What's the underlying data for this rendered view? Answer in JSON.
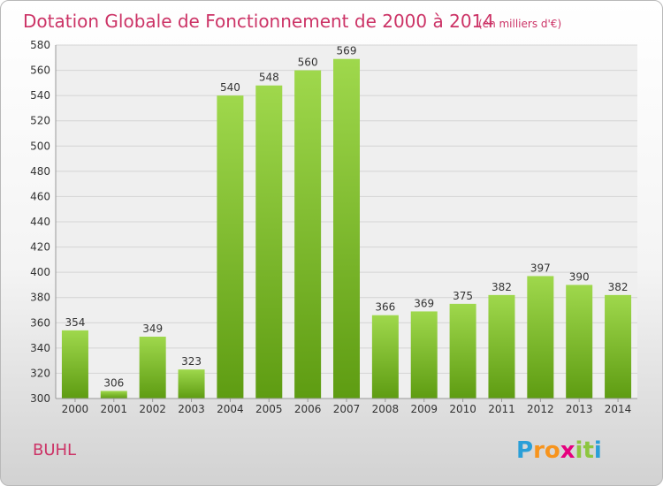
{
  "chart_data": {
    "type": "bar",
    "title": "Dotation Globale de Fonctionnement de 2000 à 2014",
    "unit": "(en milliers d'€)",
    "categories": [
      "2000",
      "2001",
      "2002",
      "2003",
      "2004",
      "2005",
      "2006",
      "2007",
      "2008",
      "2009",
      "2010",
      "2011",
      "2012",
      "2013",
      "2014"
    ],
    "values": [
      354,
      306,
      349,
      323,
      540,
      548,
      560,
      569,
      366,
      369,
      375,
      382,
      397,
      390,
      382
    ],
    "ylim": [
      300,
      580
    ],
    "yticks": [
      300,
      320,
      340,
      360,
      380,
      400,
      420,
      440,
      460,
      480,
      500,
      520,
      540,
      560,
      580
    ],
    "xlabel": "",
    "ylabel": "",
    "grid": true,
    "bar_color": "#7cc230"
  },
  "commune": "BUHL",
  "brand": {
    "letters": [
      "P",
      "r",
      "o",
      "x",
      "i",
      "t",
      "i"
    ],
    "colors": [
      "#2a9fd8",
      "#f7941d",
      "#f7941d",
      "#e6007e",
      "#8dc63f",
      "#8dc63f",
      "#2a9fd8"
    ]
  }
}
